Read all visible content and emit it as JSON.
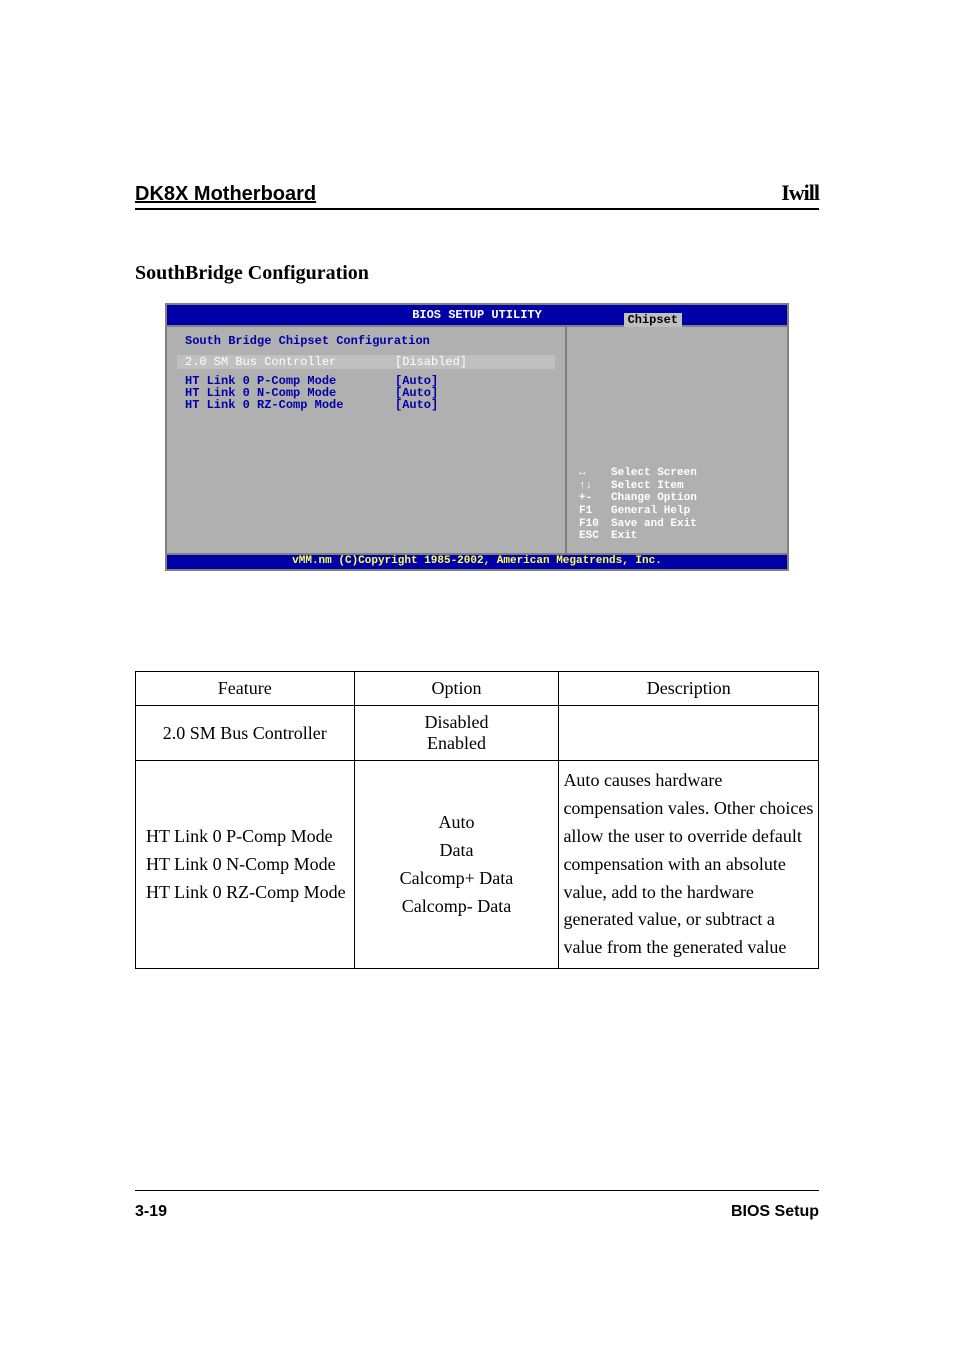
{
  "header": {
    "product_title": "DK8X Motherboard",
    "logo_text": "Iwill"
  },
  "section": {
    "title": "SouthBridge Configuration"
  },
  "bios": {
    "title": "BIOS SETUP UTILITY",
    "menu_tab": "Chipset",
    "panel_title": "South Bridge Chipset Configuration",
    "selected_row": {
      "label": "2.0 SM Bus Controller",
      "value": "[Disabled]"
    },
    "rows": [
      {
        "label": "HT Link 0 P-Comp Mode",
        "value": "[Auto]"
      },
      {
        "label": "HT Link 0 N-Comp Mode",
        "value": "[Auto]"
      },
      {
        "label": "HT Link 0 RZ-Comp Mode",
        "value": "[Auto]"
      }
    ],
    "help": [
      {
        "key": "↔",
        "text": "Select Screen"
      },
      {
        "key": "↑↓",
        "text": "Select Item"
      },
      {
        "key": "+-",
        "text": "Change Option"
      },
      {
        "key": "F1",
        "text": "General Help"
      },
      {
        "key": "F10",
        "text": "Save and Exit"
      },
      {
        "key": "ESC",
        "text": "Exit"
      }
    ],
    "footer": "vMM.nm (C)Copyright 1985-2002, American Megatrends, Inc.",
    "colors": {
      "top_bg": "#0000a8",
      "top_fg": "#ffffff",
      "tab_bg": "#c0c0c0",
      "body_bg": "#b0b0b0",
      "text_dark": "#0000a8",
      "help_fg": "#ffffff",
      "footer_fg": "#ffff55"
    }
  },
  "doc_table": {
    "headers": {
      "feature": "Feature",
      "option": "Option",
      "description": "Description"
    },
    "rows": [
      {
        "feature": "2.0 SM Bus Controller",
        "option": "Disabled\nEnabled",
        "description": ""
      },
      {
        "feature": "HT Link 0 P-Comp Mode\nHT Link 0 N-Comp Mode\nHT Link 0 RZ-Comp Mode",
        "option": "Auto\nData\nCalcomp+ Data\nCalcomp- Data",
        "description": "Auto causes hardware compensation vales. Other choices allow the user to override default compensation with an absolute value, add to the hardware generated value, or subtract a value from the generated value"
      }
    ]
  },
  "footer": {
    "page_number": "3-19",
    "section_name": "BIOS Setup"
  }
}
